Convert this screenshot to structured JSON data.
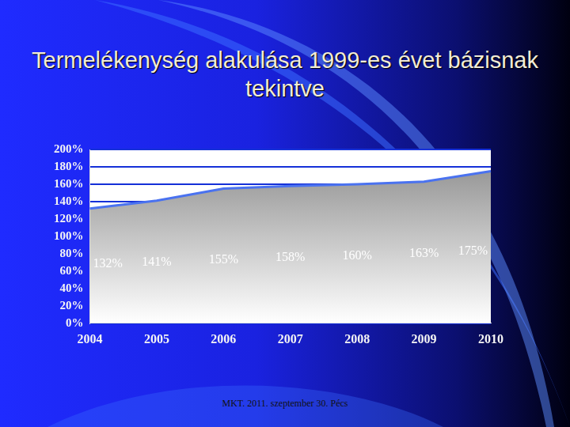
{
  "chart_data": {
    "type": "area",
    "title": "Termelékenység alakulása 1999-es évet bázisnak tekintve",
    "annotation": "MKT. 2011. szeptember 30. Pécs",
    "categories": [
      "2004",
      "2005",
      "2006",
      "2007",
      "2008",
      "2009",
      "2010"
    ],
    "values": [
      132,
      141,
      155,
      158,
      160,
      163,
      175
    ],
    "value_labels": [
      "132%",
      "141%",
      "155%",
      "158%",
      "160%",
      "163%",
      "175%"
    ],
    "data_labels": true,
    "color": "#4a72f0",
    "ylim": [
      0,
      200
    ],
    "yticks": [
      {
        "value": 0,
        "label": "0%"
      },
      {
        "value": 20,
        "label": "20%"
      },
      {
        "value": 40,
        "label": "40%"
      },
      {
        "value": 60,
        "label": "60%"
      },
      {
        "value": 80,
        "label": "80%"
      },
      {
        "value": 100,
        "label": "100%"
      },
      {
        "value": 120,
        "label": "120%"
      },
      {
        "value": 140,
        "label": "140%"
      },
      {
        "value": 160,
        "label": "160%"
      },
      {
        "value": 180,
        "label": "180%"
      },
      {
        "value": 200,
        "label": "200%"
      }
    ],
    "grid": true
  }
}
